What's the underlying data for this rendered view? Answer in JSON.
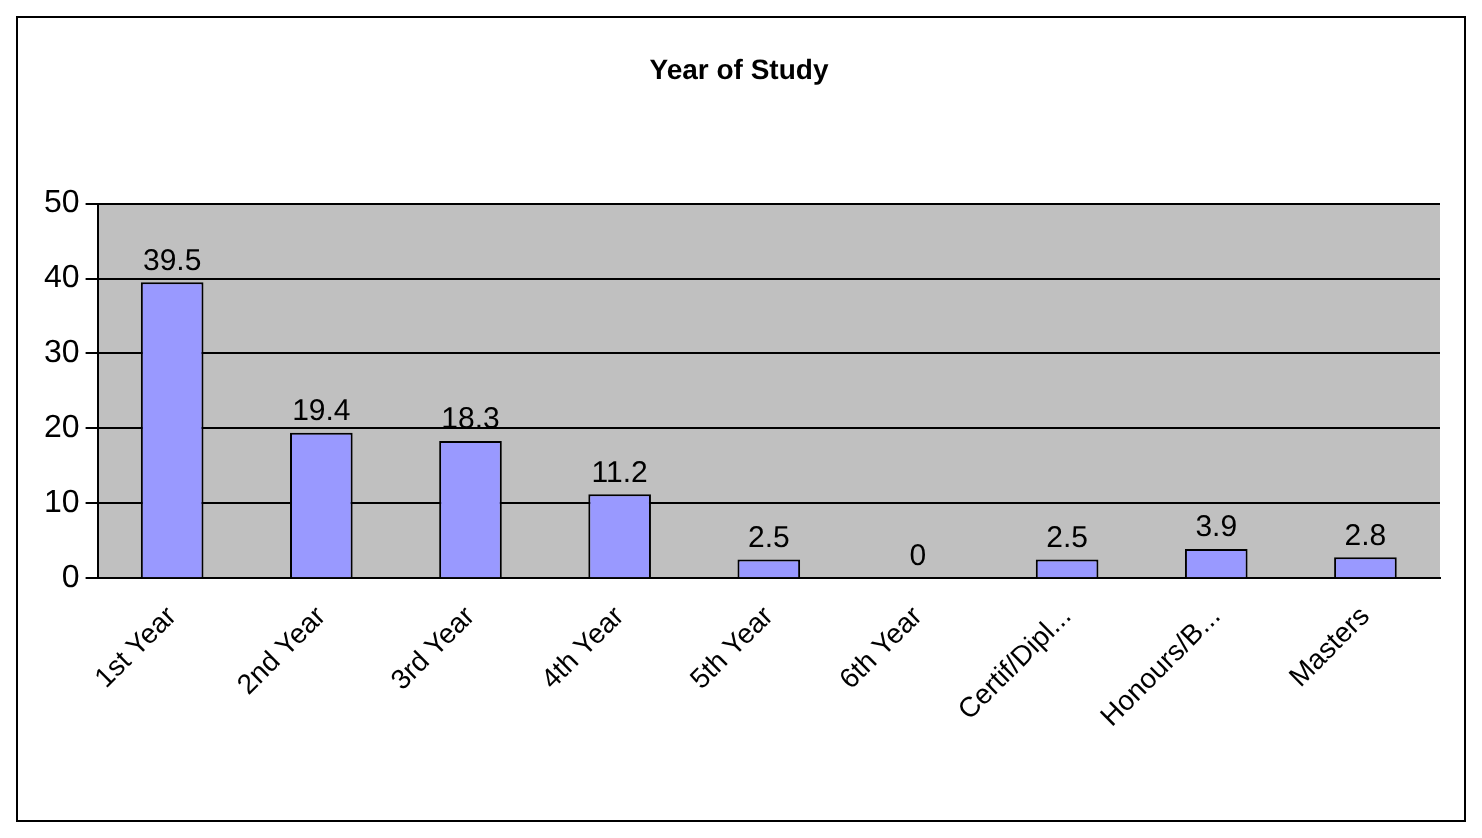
{
  "chart_data": {
    "type": "bar",
    "title": "Year of Study",
    "categories": [
      "1st Year",
      "2nd Year",
      "3rd Year",
      "4th Year",
      "5th Year",
      "6th Year",
      "Certif/Dipl...",
      "Honours/B...",
      "Masters"
    ],
    "values": [
      39.5,
      19.4,
      18.3,
      11.2,
      2.5,
      0,
      2.5,
      3.9,
      2.8
    ],
    "color": "#9999ff",
    "ylim": [
      0,
      50
    ],
    "yticks": [
      0,
      10,
      20,
      30,
      40,
      50
    ],
    "grid": "y",
    "legend": false,
    "data_labels": true
  }
}
